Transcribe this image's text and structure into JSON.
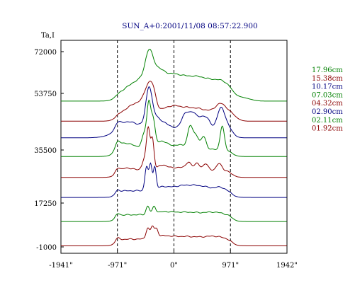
{
  "chart_data": {
    "type": "line",
    "title": "SUN_A+0:2001/11/08 08:57:22.900",
    "ylabel": "Ta,I",
    "xlabel": "",
    "x_ticks": [
      "-1941\"",
      "-971\"",
      "0\"",
      "971\"",
      "1942\""
    ],
    "x_tick_values": [
      -1941,
      -971,
      0,
      971,
      1942
    ],
    "y_ticks": [
      "72000",
      "53750",
      "35500",
      "17250",
      "-1000"
    ],
    "y_tick_values": [
      72000,
      53750,
      35500,
      17250,
      -1000
    ],
    "xlim": [
      -1941,
      1942
    ],
    "ylim": [
      -1000,
      72000
    ],
    "dashed_vlines": [
      -971,
      0,
      971
    ],
    "legend_position": "right",
    "series": [
      {
        "name": "17.96cm",
        "color": "#008000",
        "base": 53500,
        "bumps": [
          [
            -1550,
            2500,
            0.2
          ],
          [
            -971,
            300,
            0.2
          ],
          [
            -560,
            300,
            5500
          ],
          [
            -430,
            90,
            9000
          ],
          [
            -300,
            160,
            4500
          ],
          [
            -50,
            280,
            6000
          ],
          [
            420,
            360,
            6300
          ],
          [
            850,
            220,
            3500
          ],
          [
            1200,
            180,
            1000
          ]
        ]
      },
      {
        "name": "15.38cm",
        "color": "#8b0000",
        "base": 46000,
        "bumps": [
          [
            -971,
            300,
            0.2
          ],
          [
            -600,
            260,
            4500
          ],
          [
            -430,
            100,
            8000
          ],
          [
            -350,
            70,
            4000
          ],
          [
            -50,
            200,
            2000
          ],
          [
            300,
            400,
            2500
          ],
          [
            800,
            120,
            3500
          ],
          [
            1000,
            130,
            1500
          ]
        ]
      },
      {
        "name": "10.17cm",
        "color": "#000080",
        "base": 39800,
        "bumps": [
          [
            -971,
            60,
            1500
          ],
          [
            -800,
            300,
            3500
          ],
          [
            -430,
            70,
            12000
          ],
          [
            -350,
            160,
            5000
          ],
          [
            -120,
            180,
            2000
          ],
          [
            200,
            100,
            6500
          ],
          [
            330,
            80,
            4500
          ],
          [
            470,
            130,
            4800
          ],
          [
            580,
            80,
            2500
          ],
          [
            800,
            90,
            7500
          ],
          [
            900,
            120,
            2500
          ]
        ]
      },
      {
        "name": "07.03cm",
        "color": "#008000",
        "base": 32800,
        "bumps": [
          [
            -971,
            60,
            2500
          ],
          [
            -820,
            200,
            2500
          ],
          [
            -500,
            70,
            6000
          ],
          [
            -430,
            45,
            14500
          ],
          [
            -360,
            50,
            10500
          ],
          [
            -220,
            120,
            2500
          ],
          [
            280,
            60,
            7500
          ],
          [
            380,
            60,
            4500
          ],
          [
            510,
            60,
            4500
          ],
          [
            830,
            50,
            9000
          ],
          [
            100,
            350,
            1800
          ]
        ]
      },
      {
        "name": "04.32cm",
        "color": "#8b0000",
        "base": 25000,
        "bumps": [
          [
            -971,
            50,
            1500
          ],
          [
            -800,
            150,
            1000
          ],
          [
            -500,
            60,
            4500
          ],
          [
            -440,
            40,
            14000
          ],
          [
            -370,
            40,
            11500
          ],
          [
            -200,
            100,
            1500
          ],
          [
            250,
            60,
            2200
          ],
          [
            400,
            60,
            2200
          ],
          [
            550,
            60,
            2200
          ],
          [
            780,
            60,
            2800
          ],
          [
            100,
            400,
            1200
          ]
        ]
      },
      {
        "name": "02.90cm",
        "color": "#000080",
        "base": 17500,
        "bumps": [
          [
            -971,
            50,
            1000
          ],
          [
            -470,
            40,
            9000
          ],
          [
            -400,
            35,
            9500
          ],
          [
            -330,
            35,
            8500
          ],
          [
            -200,
            120,
            1000
          ],
          [
            100,
            300,
            1500
          ],
          [
            450,
            300,
            1500
          ],
          [
            800,
            100,
            1000
          ]
        ]
      },
      {
        "name": "02.11cm",
        "color": "#008000",
        "base": 8500,
        "bumps": [
          [
            -971,
            50,
            1200
          ],
          [
            -450,
            40,
            3000
          ],
          [
            -340,
            40,
            2600
          ],
          [
            -200,
            200,
            800
          ],
          [
            200,
            400,
            1000
          ],
          [
            700,
            200,
            800
          ]
        ]
      },
      {
        "name": "01.92cm",
        "color": "#8b0000",
        "base": -600,
        "bumps": [
          [
            -971,
            50,
            1200
          ],
          [
            -450,
            40,
            4000
          ],
          [
            -370,
            40,
            4200
          ],
          [
            -300,
            40,
            3000
          ],
          [
            -200,
            200,
            900
          ],
          [
            200,
            400,
            1000
          ],
          [
            700,
            200,
            900
          ]
        ]
      }
    ]
  }
}
